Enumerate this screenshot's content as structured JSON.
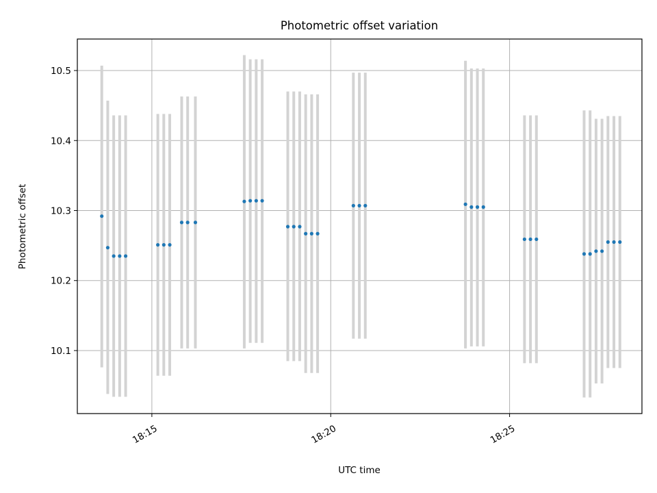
{
  "chart_data": {
    "type": "scatter",
    "title": "Photometric offset variation",
    "xlabel": "UTC time",
    "ylabel": "Photometric offset",
    "x_unit": "UTC time",
    "xlim": [
      "18:12:55",
      "18:28:42"
    ],
    "ylim": [
      10.01,
      10.545
    ],
    "x_ticks": [
      {
        "time": "18:15:00",
        "label": "18:15"
      },
      {
        "time": "18:20:00",
        "label": "18:20"
      },
      {
        "time": "18:25:00",
        "label": "18:25"
      }
    ],
    "y_ticks": [
      {
        "value": 10.1,
        "label": "10.1"
      },
      {
        "value": 10.2,
        "label": "10.2"
      },
      {
        "value": 10.3,
        "label": "10.3"
      },
      {
        "value": 10.4,
        "label": "10.4"
      },
      {
        "value": 10.5,
        "label": "10.5"
      }
    ],
    "grid": true,
    "point_color": "#1f77b4",
    "errorbar_color": "#d3d3d3",
    "points": [
      {
        "time": "18:13:36",
        "y": 10.292,
        "low": 10.076,
        "high": 10.507
      },
      {
        "time": "18:13:46",
        "y": 10.247,
        "low": 10.038,
        "high": 10.457
      },
      {
        "time": "18:13:56",
        "y": 10.235,
        "low": 10.034,
        "high": 10.436
      },
      {
        "time": "18:14:06",
        "y": 10.235,
        "low": 10.034,
        "high": 10.436
      },
      {
        "time": "18:14:16",
        "y": 10.235,
        "low": 10.034,
        "high": 10.436
      },
      {
        "time": "18:15:10",
        "y": 10.251,
        "low": 10.064,
        "high": 10.438
      },
      {
        "time": "18:15:20",
        "y": 10.251,
        "low": 10.064,
        "high": 10.438
      },
      {
        "time": "18:15:30",
        "y": 10.251,
        "low": 10.064,
        "high": 10.438
      },
      {
        "time": "18:15:50",
        "y": 10.283,
        "low": 10.103,
        "high": 10.463
      },
      {
        "time": "18:16:00",
        "y": 10.283,
        "low": 10.103,
        "high": 10.463
      },
      {
        "time": "18:16:13",
        "y": 10.283,
        "low": 10.103,
        "high": 10.463
      },
      {
        "time": "18:17:35",
        "y": 10.313,
        "low": 10.103,
        "high": 10.522
      },
      {
        "time": "18:17:45",
        "y": 10.314,
        "low": 10.111,
        "high": 10.516
      },
      {
        "time": "18:17:55",
        "y": 10.314,
        "low": 10.111,
        "high": 10.516
      },
      {
        "time": "18:18:05",
        "y": 10.314,
        "low": 10.111,
        "high": 10.516
      },
      {
        "time": "18:18:48",
        "y": 10.277,
        "low": 10.085,
        "high": 10.47
      },
      {
        "time": "18:18:58",
        "y": 10.277,
        "low": 10.085,
        "high": 10.47
      },
      {
        "time": "18:19:08",
        "y": 10.277,
        "low": 10.085,
        "high": 10.47
      },
      {
        "time": "18:19:18",
        "y": 10.267,
        "low": 10.068,
        "high": 10.466
      },
      {
        "time": "18:19:28",
        "y": 10.267,
        "low": 10.068,
        "high": 10.466
      },
      {
        "time": "18:19:38",
        "y": 10.267,
        "low": 10.068,
        "high": 10.466
      },
      {
        "time": "18:20:38",
        "y": 10.307,
        "low": 10.117,
        "high": 10.497
      },
      {
        "time": "18:20:48",
        "y": 10.307,
        "low": 10.117,
        "high": 10.497
      },
      {
        "time": "18:20:58",
        "y": 10.307,
        "low": 10.117,
        "high": 10.497
      },
      {
        "time": "18:23:46",
        "y": 10.309,
        "low": 10.103,
        "high": 10.514
      },
      {
        "time": "18:23:56",
        "y": 10.305,
        "low": 10.106,
        "high": 10.503
      },
      {
        "time": "18:24:06",
        "y": 10.305,
        "low": 10.106,
        "high": 10.503
      },
      {
        "time": "18:24:16",
        "y": 10.305,
        "low": 10.106,
        "high": 10.503
      },
      {
        "time": "18:25:25",
        "y": 10.259,
        "low": 10.082,
        "high": 10.436
      },
      {
        "time": "18:25:35",
        "y": 10.259,
        "low": 10.082,
        "high": 10.436
      },
      {
        "time": "18:25:45",
        "y": 10.259,
        "low": 10.082,
        "high": 10.436
      },
      {
        "time": "18:27:05",
        "y": 10.238,
        "low": 10.033,
        "high": 10.443
      },
      {
        "time": "18:27:15",
        "y": 10.238,
        "low": 10.033,
        "high": 10.443
      },
      {
        "time": "18:27:25",
        "y": 10.242,
        "low": 10.053,
        "high": 10.431
      },
      {
        "time": "18:27:35",
        "y": 10.242,
        "low": 10.053,
        "high": 10.431
      },
      {
        "time": "18:27:45",
        "y": 10.255,
        "low": 10.075,
        "high": 10.435
      },
      {
        "time": "18:27:55",
        "y": 10.255,
        "low": 10.075,
        "high": 10.435
      },
      {
        "time": "18:28:05",
        "y": 10.255,
        "low": 10.075,
        "high": 10.435
      }
    ]
  }
}
